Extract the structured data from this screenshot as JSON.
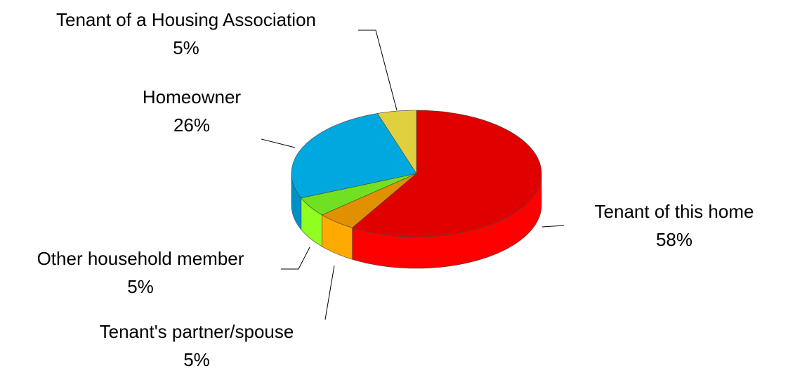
{
  "chart_data": {
    "type": "pie",
    "categories": [
      "Tenant of this home",
      "Tenant's partner/spouse",
      "Other household member",
      "Homeowner",
      "Tenant of a Housing Association"
    ],
    "values": [
      58,
      5,
      5,
      26,
      5
    ],
    "value_labels": [
      "58%",
      "5%",
      "5%",
      "26%",
      "5%"
    ],
    "colors": [
      "#e00000",
      "#e09000",
      "#70e020",
      "#00a8e0",
      "#e0d040"
    ],
    "side_colors": [
      "#ff0000",
      "#ffaa00",
      "#90ff20",
      "#0090c8",
      "#c8b830"
    ]
  }
}
